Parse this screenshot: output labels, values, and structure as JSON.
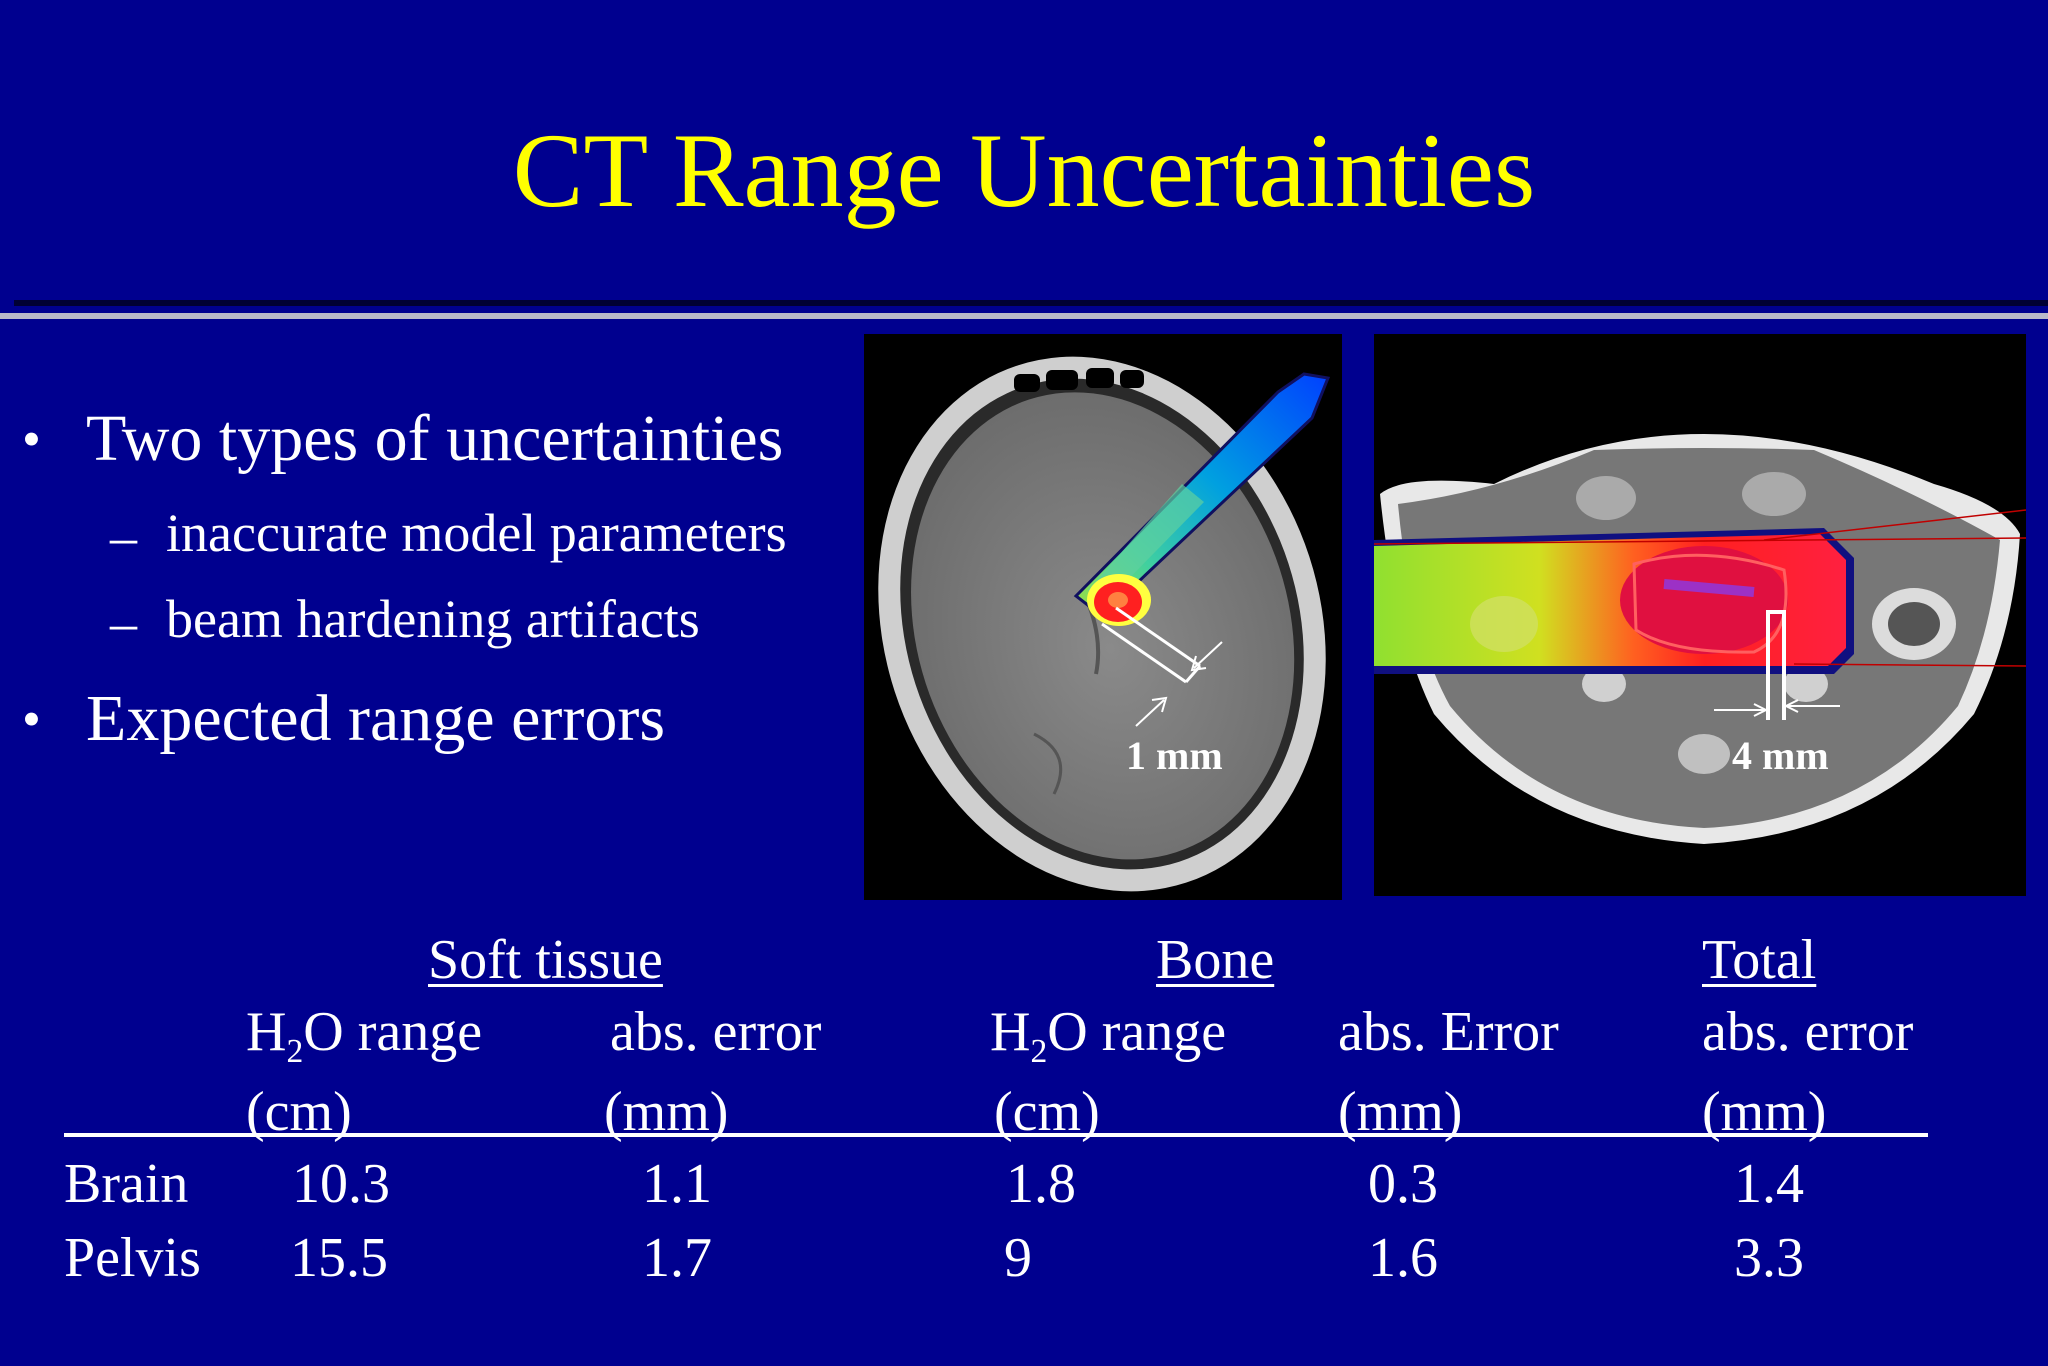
{
  "slide": {
    "title": "CT Range Uncertainties",
    "bullets": [
      {
        "text": "Two types of uncertainties"
      },
      {
        "text": "Expected range errors"
      }
    ],
    "sub_bullets": [
      {
        "text": "inaccurate model parameters"
      },
      {
        "text": "beam hardening artifacts"
      }
    ]
  },
  "figures": {
    "brain_label": "1 mm",
    "pelvis_label": "4 mm"
  },
  "table": {
    "groups": {
      "soft_tissue": "Soft tissue",
      "bone": "Bone",
      "total": "Total"
    },
    "subheaders": {
      "h2o_prefix": "H",
      "h2o_sub": "2",
      "h2o_suffix": "O range",
      "abs_error": "abs. error",
      "abs_error_cap": "abs. Error",
      "unit_cm": "(cm)",
      "unit_mm": "(mm)"
    },
    "rows": [
      {
        "name": "Brain",
        "soft_range": "10.3",
        "soft_err": "1.1",
        "bone_range": "1.8",
        "bone_err": "0.3",
        "total_err": "1.4"
      },
      {
        "name": "Pelvis",
        "soft_range": "15.5",
        "soft_err": "1.7",
        "bone_range": "9",
        "bone_err": "1.6",
        "total_err": "3.3"
      }
    ]
  },
  "colors": {
    "background": "#00008f",
    "title": "#ffff00",
    "text": "#ffffff"
  }
}
